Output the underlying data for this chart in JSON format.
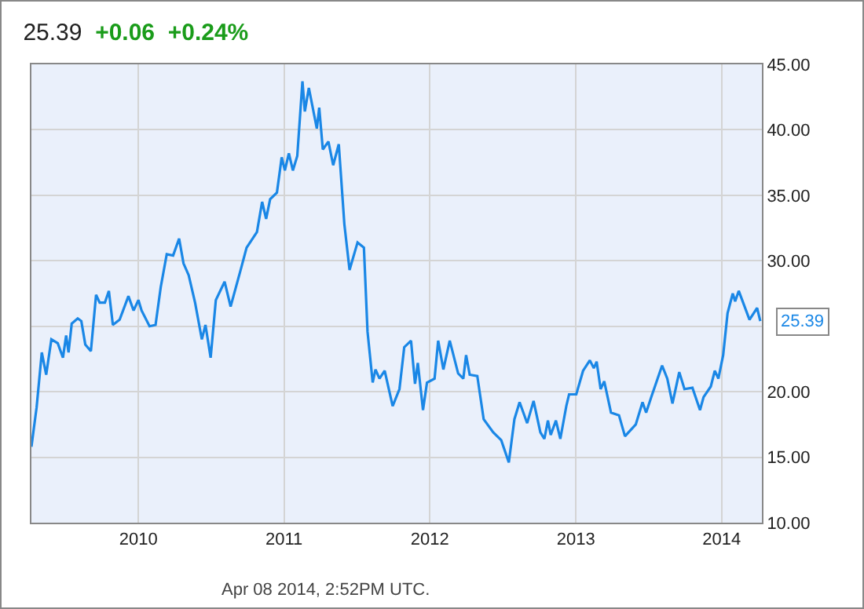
{
  "chart_data": {
    "type": "line",
    "title": "25.39",
    "subtitle": "+0.06  +0.24%",
    "x": [
      "2009-04-08",
      "2009-04-21",
      "2009-05-04",
      "2009-05-15",
      "2009-05-28",
      "2009-06-13",
      "2009-06-26",
      "2009-07-04",
      "2009-07-10",
      "2009-07-18",
      "2009-08-02",
      "2009-08-11",
      "2009-08-21",
      "2009-09-04",
      "2009-09-17",
      "2009-09-26",
      "2009-10-09",
      "2009-10-19",
      "2009-10-29",
      "2009-11-15",
      "2009-12-07",
      "2009-12-20",
      "2010-01-01",
      "2010-01-09",
      "2010-01-29",
      "2010-02-13",
      "2010-02-26",
      "2010-03-13",
      "2010-03-29",
      "2010-04-13",
      "2010-04-24",
      "2010-05-07",
      "2010-05-23",
      "2010-06-09",
      "2010-06-18",
      "2010-07-01",
      "2010-07-14",
      "2010-08-05",
      "2010-08-20",
      "2010-09-15",
      "2010-09-29",
      "2010-10-25",
      "2010-11-07",
      "2010-11-17",
      "2010-11-27",
      "2010-12-14",
      "2010-12-26",
      "2011-01-03",
      "2011-01-13",
      "2011-01-23",
      "2011-02-03",
      "2011-02-16",
      "2011-02-22",
      "2011-03-04",
      "2011-03-24",
      "2011-03-30",
      "2011-04-08",
      "2011-04-22",
      "2011-05-04",
      "2011-05-18",
      "2011-06-01",
      "2011-06-14",
      "2011-07-04",
      "2011-07-20",
      "2011-07-29",
      "2011-08-11",
      "2011-08-18",
      "2011-08-28",
      "2011-09-10",
      "2011-09-30",
      "2011-10-17",
      "2011-10-29",
      "2011-11-15",
      "2011-11-25",
      "2011-12-02",
      "2011-12-15",
      "2011-12-25",
      "2012-01-13",
      "2012-01-22",
      "2012-02-04",
      "2012-02-20",
      "2012-03-12",
      "2012-03-25",
      "2012-04-01",
      "2012-04-10",
      "2012-04-29",
      "2012-05-15",
      "2012-06-08",
      "2012-06-28",
      "2012-07-17",
      "2012-07-31",
      "2012-08-13",
      "2012-09-01",
      "2012-09-17",
      "2012-10-04",
      "2012-10-14",
      "2012-10-23",
      "2012-10-30",
      "2012-11-12",
      "2012-11-23",
      "2012-12-08",
      "2012-12-15",
      "2013-01-02",
      "2013-01-19",
      "2013-02-05",
      "2013-02-15",
      "2013-02-22",
      "2013-03-04",
      "2013-03-13",
      "2013-03-30",
      "2013-04-19",
      "2013-05-04",
      "2013-05-31",
      "2013-06-17",
      "2013-06-26",
      "2013-07-09",
      "2013-08-05",
      "2013-08-18",
      "2013-08-31",
      "2013-09-17",
      "2013-09-30",
      "2013-10-20",
      "2013-11-08",
      "2013-11-17",
      "2013-12-05",
      "2013-12-15",
      "2013-12-24",
      "2014-01-05",
      "2014-01-16",
      "2014-01-29",
      "2014-02-04",
      "2014-02-13",
      "2014-03-12",
      "2014-03-31",
      "2014-04-08"
    ],
    "series": [
      {
        "color": "#1a87e6",
        "values": [
          15.8,
          18.8,
          23.0,
          21.3,
          24.0,
          23.7,
          22.6,
          24.3,
          23.0,
          25.2,
          25.6,
          25.4,
          23.6,
          23.1,
          27.4,
          26.8,
          26.8,
          27.7,
          25.1,
          25.5,
          27.3,
          26.2,
          27.0,
          26.2,
          25.0,
          25.1,
          28.0,
          30.5,
          30.4,
          31.7,
          29.8,
          28.9,
          26.8,
          24.0,
          25.1,
          22.6,
          27.0,
          28.4,
          26.5,
          29.4,
          31.0,
          32.2,
          34.5,
          33.2,
          34.7,
          35.2,
          37.9,
          36.9,
          38.2,
          36.9,
          38.0,
          43.7,
          41.4,
          43.2,
          40.1,
          41.7,
          38.5,
          39.1,
          37.3,
          38.9,
          32.8,
          29.3,
          31.4,
          31.0,
          24.6,
          20.7,
          21.7,
          21.0,
          21.6,
          18.9,
          20.2,
          23.4,
          23.9,
          20.6,
          22.2,
          18.6,
          20.7,
          21.0,
          23.9,
          21.7,
          23.9,
          21.4,
          21.0,
          22.8,
          21.3,
          21.2,
          17.9,
          16.9,
          16.3,
          14.6,
          17.9,
          19.2,
          17.6,
          19.3,
          16.9,
          16.4,
          17.8,
          16.7,
          17.8,
          16.4,
          18.9,
          19.8,
          19.8,
          21.6,
          22.4,
          21.8,
          22.3,
          20.2,
          20.8,
          18.4,
          18.2,
          16.6,
          17.5,
          19.2,
          18.4,
          19.6,
          22.0,
          21.0,
          19.1,
          21.5,
          20.2,
          20.3,
          18.6,
          19.6,
          20.4,
          21.6,
          21.0,
          22.8,
          26.0,
          27.5,
          26.9,
          27.7,
          25.5,
          26.4,
          25.39
        ]
      }
    ],
    "xlim": [
      "2009-04-08",
      "2014-04-12"
    ],
    "xticks": [
      {
        "value": "2010-01-01",
        "label": "2010"
      },
      {
        "value": "2011-01-01",
        "label": "2011"
      },
      {
        "value": "2012-01-01",
        "label": "2012"
      },
      {
        "value": "2013-01-01",
        "label": "2013"
      },
      {
        "value": "2014-01-01",
        "label": "2014"
      }
    ],
    "ylim": [
      10,
      45
    ],
    "yticks": [
      {
        "value": 10,
        "label": "10.00"
      },
      {
        "value": 15,
        "label": "15.00"
      },
      {
        "value": 20,
        "label": "20.00"
      },
      {
        "value": 25,
        "label": null
      },
      {
        "value": 30,
        "label": "30.00"
      },
      {
        "value": 35,
        "label": "35.00"
      },
      {
        "value": 40,
        "label": "40.00"
      },
      {
        "value": 45,
        "label": "45.00"
      }
    ],
    "grid": true,
    "marker": "none",
    "line_style": "solid",
    "annotations": [
      {
        "text": "25.39",
        "x": "2014-04-08",
        "y": 25.39
      },
      "Apr 08 2014, 2:52PM UTC."
    ]
  }
}
